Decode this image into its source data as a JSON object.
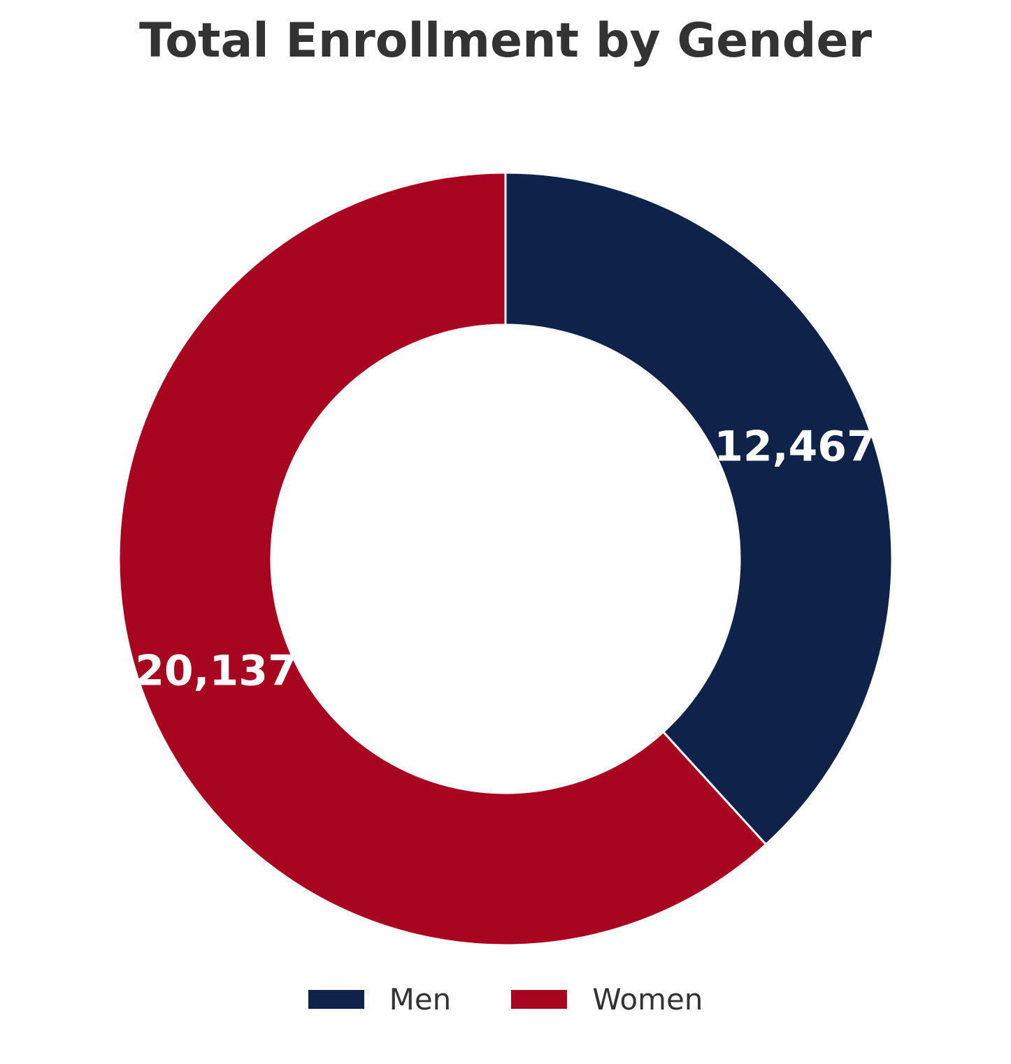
{
  "chart_data": {
    "type": "pie",
    "title": "Total Enrollment by Gender",
    "donut": true,
    "categories": [
      "Men",
      "Women"
    ],
    "values": [
      12467,
      20137
    ],
    "value_labels": [
      "12,467",
      "20,137"
    ],
    "colors": [
      "#0e224a",
      "#a80620"
    ],
    "legend": {
      "position": "bottom-center",
      "entries": [
        {
          "label": "Men",
          "color": "#0e224a"
        },
        {
          "label": "Women",
          "color": "#a80620"
        }
      ]
    }
  }
}
